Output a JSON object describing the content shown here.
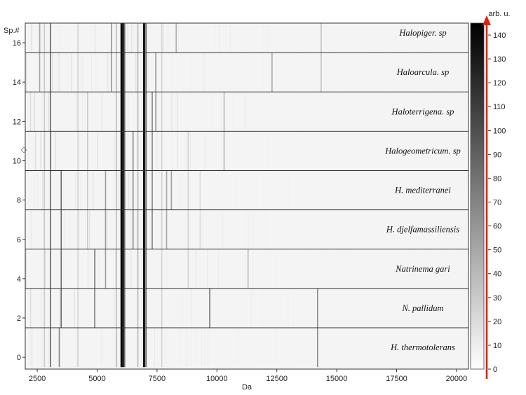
{
  "chart_data": {
    "type": "heatmap",
    "title": "",
    "xlabel": "Da",
    "ylabel": "Sp.#",
    "colorbar_label": "arb. u.",
    "xlim": [
      2000,
      20500
    ],
    "ylim": [
      -0.6,
      17.0
    ],
    "x_ticks": [
      2500,
      5000,
      7500,
      10000,
      12500,
      15000,
      17500,
      20000
    ],
    "y_ticks": [
      0,
      2,
      4,
      6,
      8,
      10,
      12,
      14,
      16
    ],
    "colorbar_ticks": [
      0,
      10,
      20,
      30,
      40,
      50,
      60,
      70,
      80,
      90,
      100,
      110,
      120,
      130,
      140
    ],
    "colorbar_range": [
      0,
      145
    ],
    "colormap": [
      "#ffffff",
      "#000000"
    ],
    "group_boundaries": [
      -0.5,
      1.5,
      3.5,
      5.5,
      7.5,
      9.5,
      11.5,
      13.5,
      15.5,
      17.0
    ],
    "groups": [
      {
        "label": "H. thermotolerans",
        "y_center": 0.5
      },
      {
        "label": "N. pallidum",
        "y_center": 2.5
      },
      {
        "label": "Natrinema gari",
        "y_center": 4.5
      },
      {
        "label": "H. djelfamassiliensis",
        "y_center": 6.5
      },
      {
        "label": "H. mediterranei",
        "y_center": 8.5
      },
      {
        "label": "Halogeometricum. sp",
        "y_center": 10.5
      },
      {
        "label": "Haloterrigena. sp",
        "y_center": 12.5
      },
      {
        "label": "Haloarcula. sp",
        "y_center": 14.5
      },
      {
        "label": "Halopiger. sp",
        "y_center": 16.5
      }
    ],
    "peaks": [
      {
        "da": 6020,
        "y": [
          -0.5,
          17.0
        ],
        "value": 145
      },
      {
        "da": 6080,
        "y": [
          -0.5,
          17.0
        ],
        "value": 130
      },
      {
        "da": 6150,
        "y": [
          -0.5,
          17.0
        ],
        "value": 85
      },
      {
        "da": 6960,
        "y": [
          -0.5,
          17.0
        ],
        "value": 135
      },
      {
        "da": 7040,
        "y": [
          -0.5,
          17.0
        ],
        "value": 95
      },
      {
        "da": 3050,
        "y": [
          -0.5,
          17.0
        ],
        "value": 90
      },
      {
        "da": 3500,
        "y": [
          1.5,
          9.5
        ],
        "value": 85
      },
      {
        "da": 3420,
        "y": [
          -0.5,
          1.5
        ],
        "value": 70
      },
      {
        "da": 4900,
        "y": [
          1.5,
          5.5
        ],
        "value": 75
      },
      {
        "da": 5350,
        "y": [
          3.5,
          9.5
        ],
        "value": 55
      },
      {
        "da": 5600,
        "y": [
          13.5,
          17.0
        ],
        "value": 60
      },
      {
        "da": 6500,
        "y": [
          5.5,
          11.5
        ],
        "value": 65
      },
      {
        "da": 7300,
        "y": [
          5.5,
          13.5
        ],
        "value": 70
      },
      {
        "da": 7450,
        "y": [
          11.5,
          15.5
        ],
        "value": 60
      },
      {
        "da": 7900,
        "y": [
          5.5,
          9.5
        ],
        "value": 50
      },
      {
        "da": 8100,
        "y": [
          7.5,
          9.5
        ],
        "value": 55
      },
      {
        "da": 8300,
        "y": [
          15.5,
          17.0
        ],
        "value": 45
      },
      {
        "da": 9700,
        "y": [
          1.5,
          3.5
        ],
        "value": 80
      },
      {
        "da": 10300,
        "y": [
          9.5,
          13.5
        ],
        "value": 40
      },
      {
        "da": 11300,
        "y": [
          3.5,
          5.5
        ],
        "value": 40
      },
      {
        "da": 12300,
        "y": [
          13.5,
          15.5
        ],
        "value": 50
      },
      {
        "da": 14200,
        "y": [
          -0.5,
          3.5
        ],
        "value": 65
      },
      {
        "da": 14350,
        "y": [
          13.5,
          17.0
        ],
        "value": 35
      },
      {
        "da": 2600,
        "y": [
          13.5,
          17.0
        ],
        "value": 50
      },
      {
        "da": 2800,
        "y": [
          -0.5,
          17.0
        ],
        "value": 30
      },
      {
        "da": 4200,
        "y": [
          -0.5,
          17.0
        ],
        "value": 25
      },
      {
        "da": 4600,
        "y": [
          5.5,
          13.5
        ],
        "value": 30
      },
      {
        "da": 5800,
        "y": [
          -0.5,
          17.0
        ],
        "value": 40
      },
      {
        "da": 6700,
        "y": [
          -0.5,
          17.0
        ],
        "value": 40
      },
      {
        "da": 7700,
        "y": [
          -0.5,
          17.0
        ],
        "value": 25
      },
      {
        "da": 8800,
        "y": [
          3.5,
          11.5
        ],
        "value": 25
      },
      {
        "da": 9300,
        "y": [
          5.5,
          9.5
        ],
        "value": 20
      }
    ]
  },
  "marker_symbol": "◇"
}
